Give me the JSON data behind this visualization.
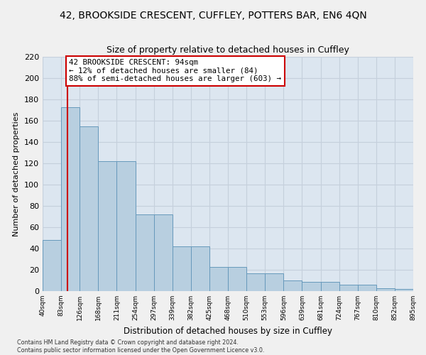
{
  "title_main": "42, BROOKSIDE CRESCENT, CUFFLEY, POTTERS BAR, EN6 4QN",
  "title_sub": "Size of property relative to detached houses in Cuffley",
  "xlabel": "Distribution of detached houses by size in Cuffley",
  "ylabel": "Number of detached properties",
  "bar_heights": [
    48,
    173,
    155,
    122,
    122,
    72,
    72,
    42,
    42,
    23,
    23,
    17,
    17,
    10,
    9,
    9,
    6,
    6,
    3,
    2
  ],
  "tick_labels": [
    "40sqm",
    "83sqm",
    "126sqm",
    "168sqm",
    "211sqm",
    "254sqm",
    "297sqm",
    "339sqm",
    "382sqm",
    "425sqm",
    "468sqm",
    "510sqm",
    "553sqm",
    "596sqm",
    "639sqm",
    "681sqm",
    "724sqm",
    "767sqm",
    "810sqm",
    "852sqm",
    "895sqm"
  ],
  "property_bin": 1.35,
  "vline_color": "#cc0000",
  "annotation_text": "42 BROOKSIDE CRESCENT: 94sqm\n← 12% of detached houses are smaller (84)\n88% of semi-detached houses are larger (603) →",
  "annotation_box_facecolor": "#ffffff",
  "annotation_box_edgecolor": "#cc0000",
  "bar_color": "#b8cfe0",
  "bar_edgecolor": "#6699bb",
  "ylim": [
    0,
    220
  ],
  "yticks": [
    0,
    20,
    40,
    60,
    80,
    100,
    120,
    140,
    160,
    180,
    200,
    220
  ],
  "grid_color": "#c5d0dc",
  "bg_color": "#dce6f0",
  "fig_bg_color": "#f0f0f0",
  "footer_text": "Contains HM Land Registry data © Crown copyright and database right 2024.\nContains public sector information licensed under the Open Government Licence v3.0.",
  "title_main_fontsize": 10,
  "title_sub_fontsize": 9,
  "annotation_fontsize": 7.8
}
